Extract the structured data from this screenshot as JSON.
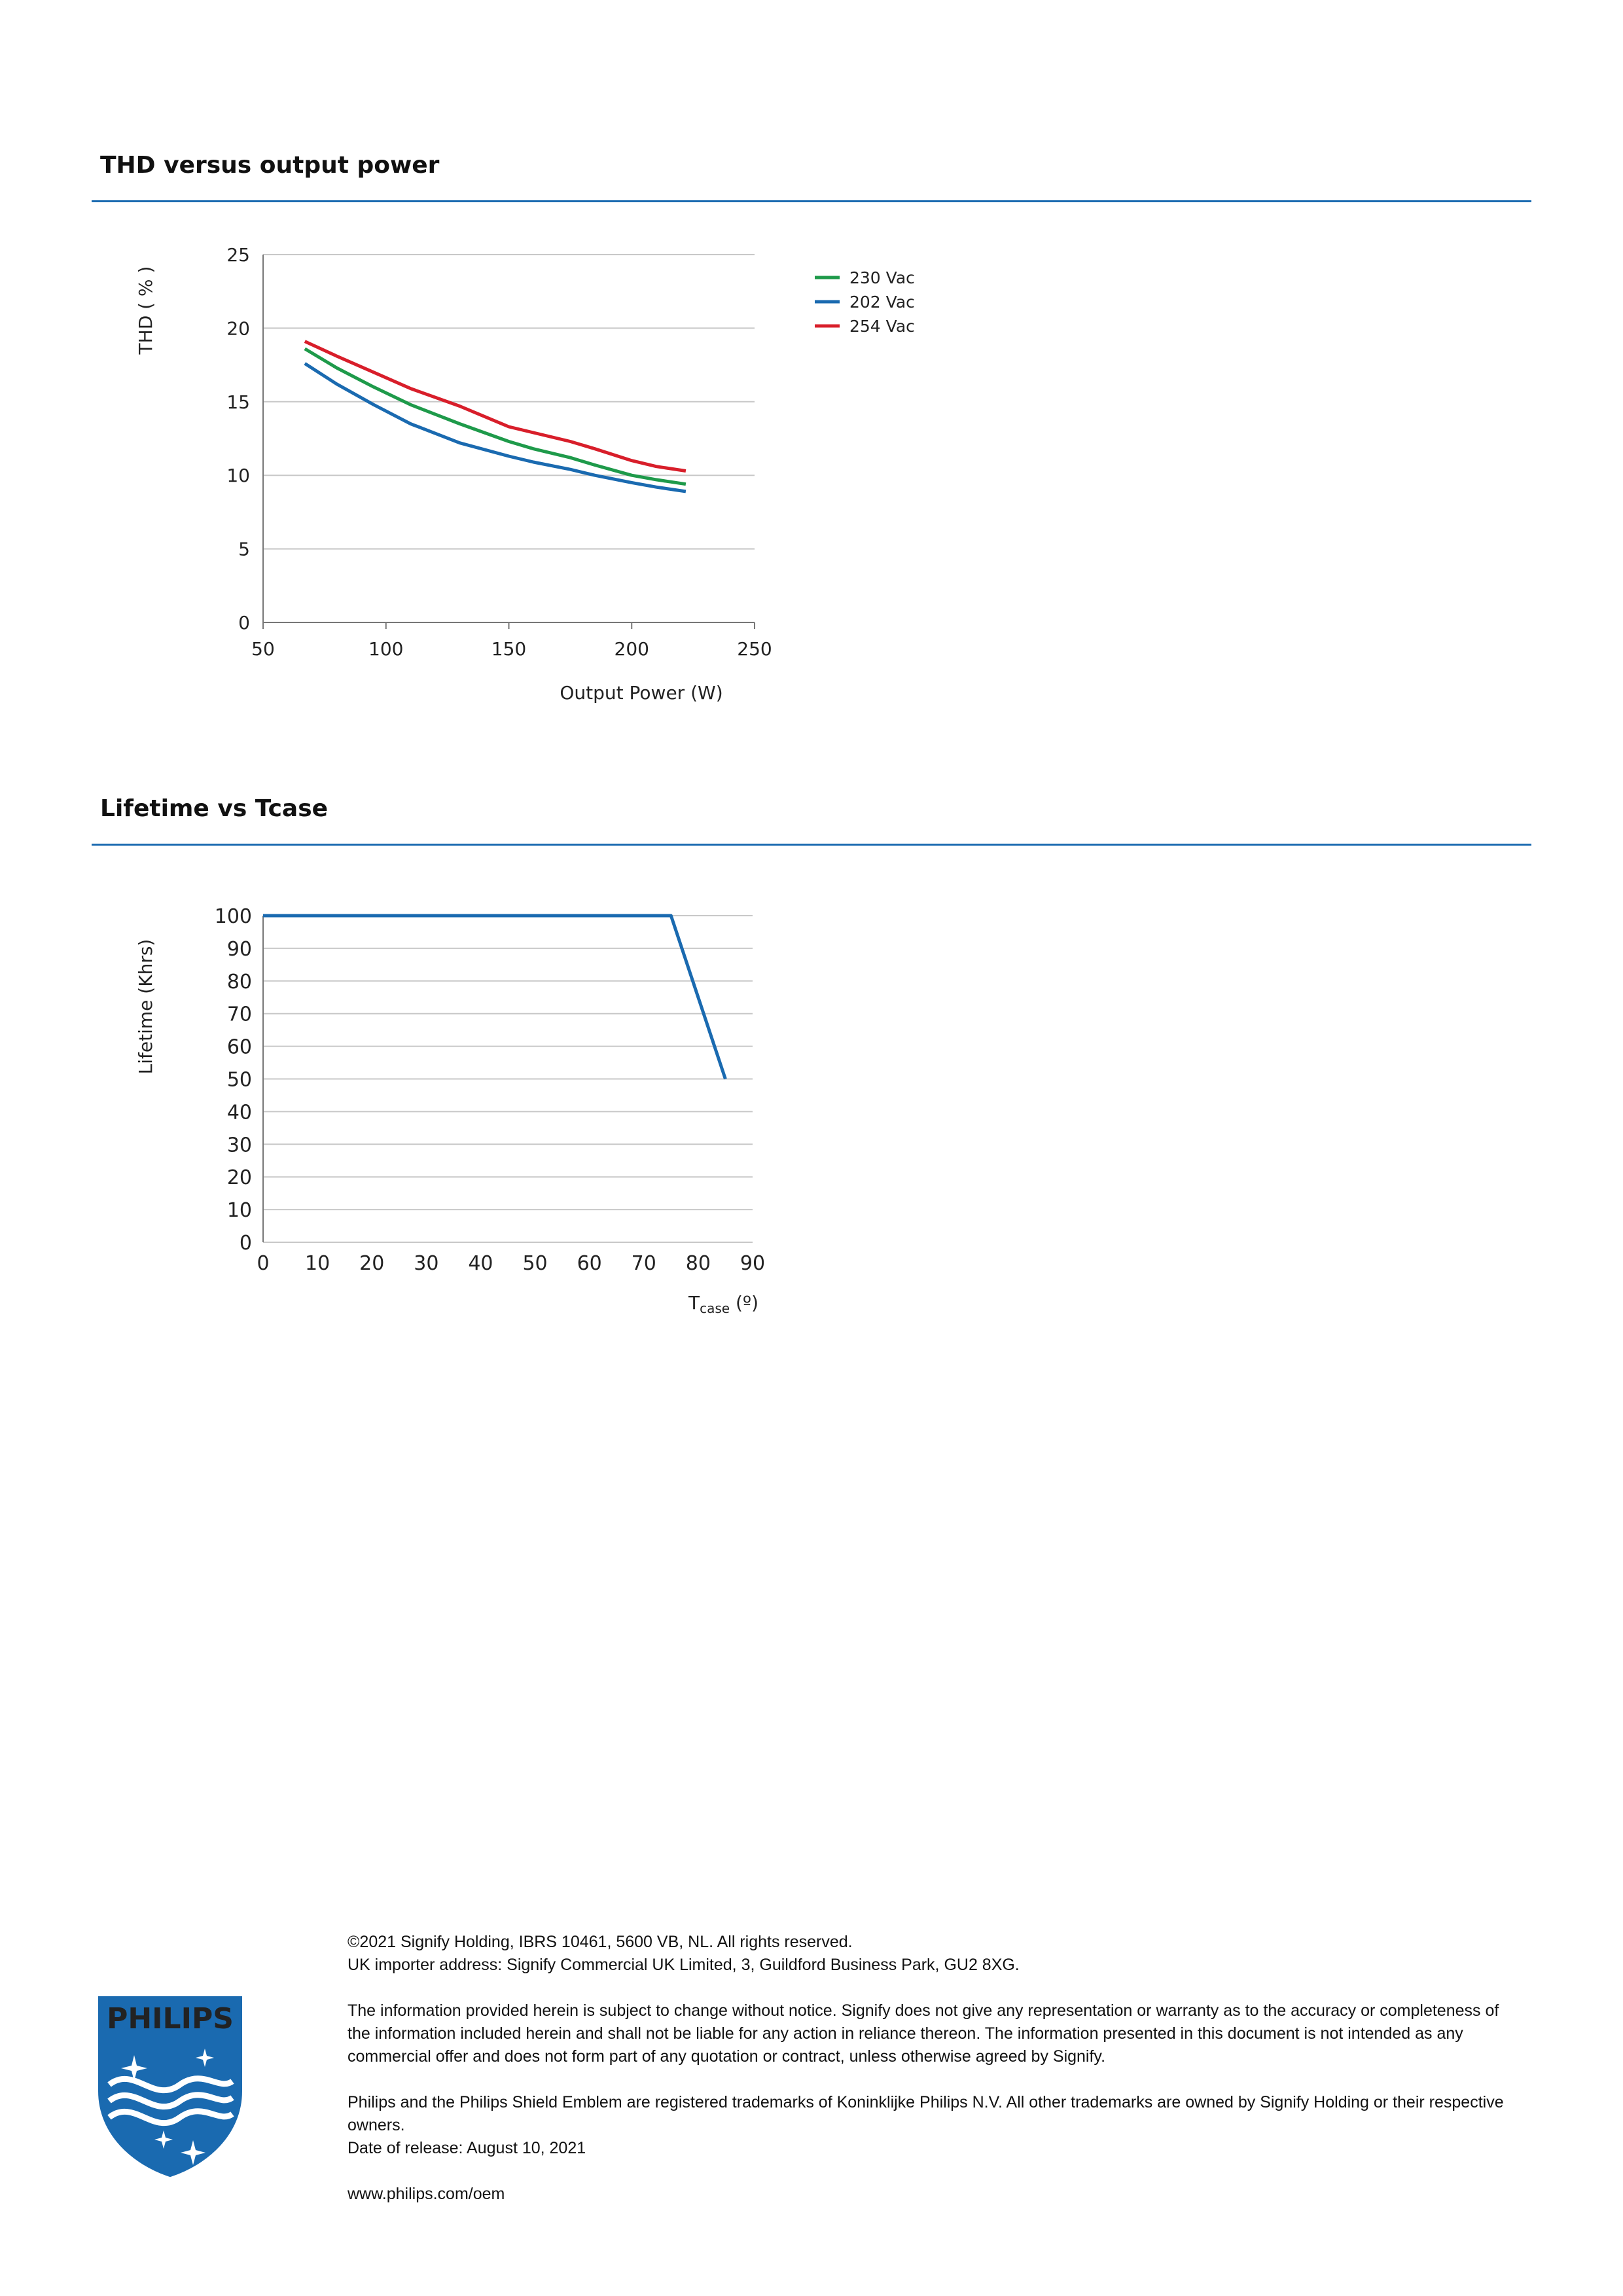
{
  "sections": {
    "thd_title": "THD versus output power",
    "lifetime_title": "Lifetime vs Tcase"
  },
  "chart_data": [
    {
      "type": "line",
      "ylabel": "THD ( % )",
      "xlabel": "Output Power (W)",
      "xlim": [
        50,
        250
      ],
      "ylim": [
        0,
        25
      ],
      "xticks": [
        50,
        100,
        150,
        200,
        250
      ],
      "yticks": [
        0,
        5,
        10,
        15,
        20,
        25
      ],
      "grid": true,
      "legend_position": "top-right",
      "series": [
        {
          "name": "230 Vac",
          "color": "#1e9a4a",
          "x": [
            67,
            80,
            95,
            110,
            130,
            150,
            160,
            175,
            185,
            200,
            210,
            222
          ],
          "y": [
            18.6,
            17.3,
            16.0,
            14.8,
            13.5,
            12.3,
            11.8,
            11.2,
            10.7,
            10.0,
            9.7,
            9.4
          ]
        },
        {
          "name": "202 Vac",
          "color": "#1a6ab0",
          "x": [
            67,
            80,
            95,
            110,
            130,
            150,
            160,
            175,
            185,
            200,
            210,
            222
          ],
          "y": [
            17.6,
            16.2,
            14.8,
            13.5,
            12.2,
            11.3,
            10.9,
            10.4,
            10.0,
            9.5,
            9.2,
            8.9
          ]
        },
        {
          "name": "254 Vac",
          "color": "#d81e2a",
          "x": [
            67,
            80,
            95,
            110,
            130,
            150,
            160,
            175,
            185,
            200,
            210,
            222
          ],
          "y": [
            19.1,
            18.1,
            17.0,
            15.9,
            14.7,
            13.3,
            12.9,
            12.3,
            11.8,
            11.0,
            10.6,
            10.3
          ]
        }
      ]
    },
    {
      "type": "line",
      "ylabel": "Lifetime (Khrs)",
      "xlabel_main": "T",
      "xlabel_sub": "case",
      "xlabel_unit": " (º)",
      "xlim": [
        0,
        90
      ],
      "ylim": [
        0,
        100
      ],
      "xticks": [
        0,
        10,
        20,
        30,
        40,
        50,
        60,
        70,
        80,
        90
      ],
      "yticks": [
        0,
        10,
        20,
        30,
        40,
        50,
        60,
        70,
        80,
        90,
        100
      ],
      "grid": true,
      "series": [
        {
          "color": "#1a6ab0",
          "x": [
            0,
            75,
            85
          ],
          "y": [
            100,
            100,
            50
          ]
        }
      ]
    }
  ],
  "footer": {
    "copyright": "©2021 Signify Holding, IBRS 10461, 5600 VB, NL. All rights reserved.",
    "importer": "UK importer address: Signify Commercial UK Limited, 3, Guildford Business Park, GU2 8XG.",
    "disclaimer": "The information provided herein is subject to change without notice. Signify does not give any representation or warranty as to the accuracy or completeness of the information included herein and shall not be liable for any action in reliance thereon. The information presented in this document is not intended as any commercial offer and does not form part of any quotation or contract, unless otherwise agreed by Signify.",
    "trademarks": "Philips and the Philips Shield Emblem are registered trademarks of Koninklijke Philips N.V. All other trademarks are owned by Signify Holding or their respective owners.",
    "release": "Date of release: August 10, 2021",
    "website": "www.philips.com/oem"
  },
  "logo": {
    "wordmark": "PHILIPS",
    "color": "#1a6ab0"
  }
}
